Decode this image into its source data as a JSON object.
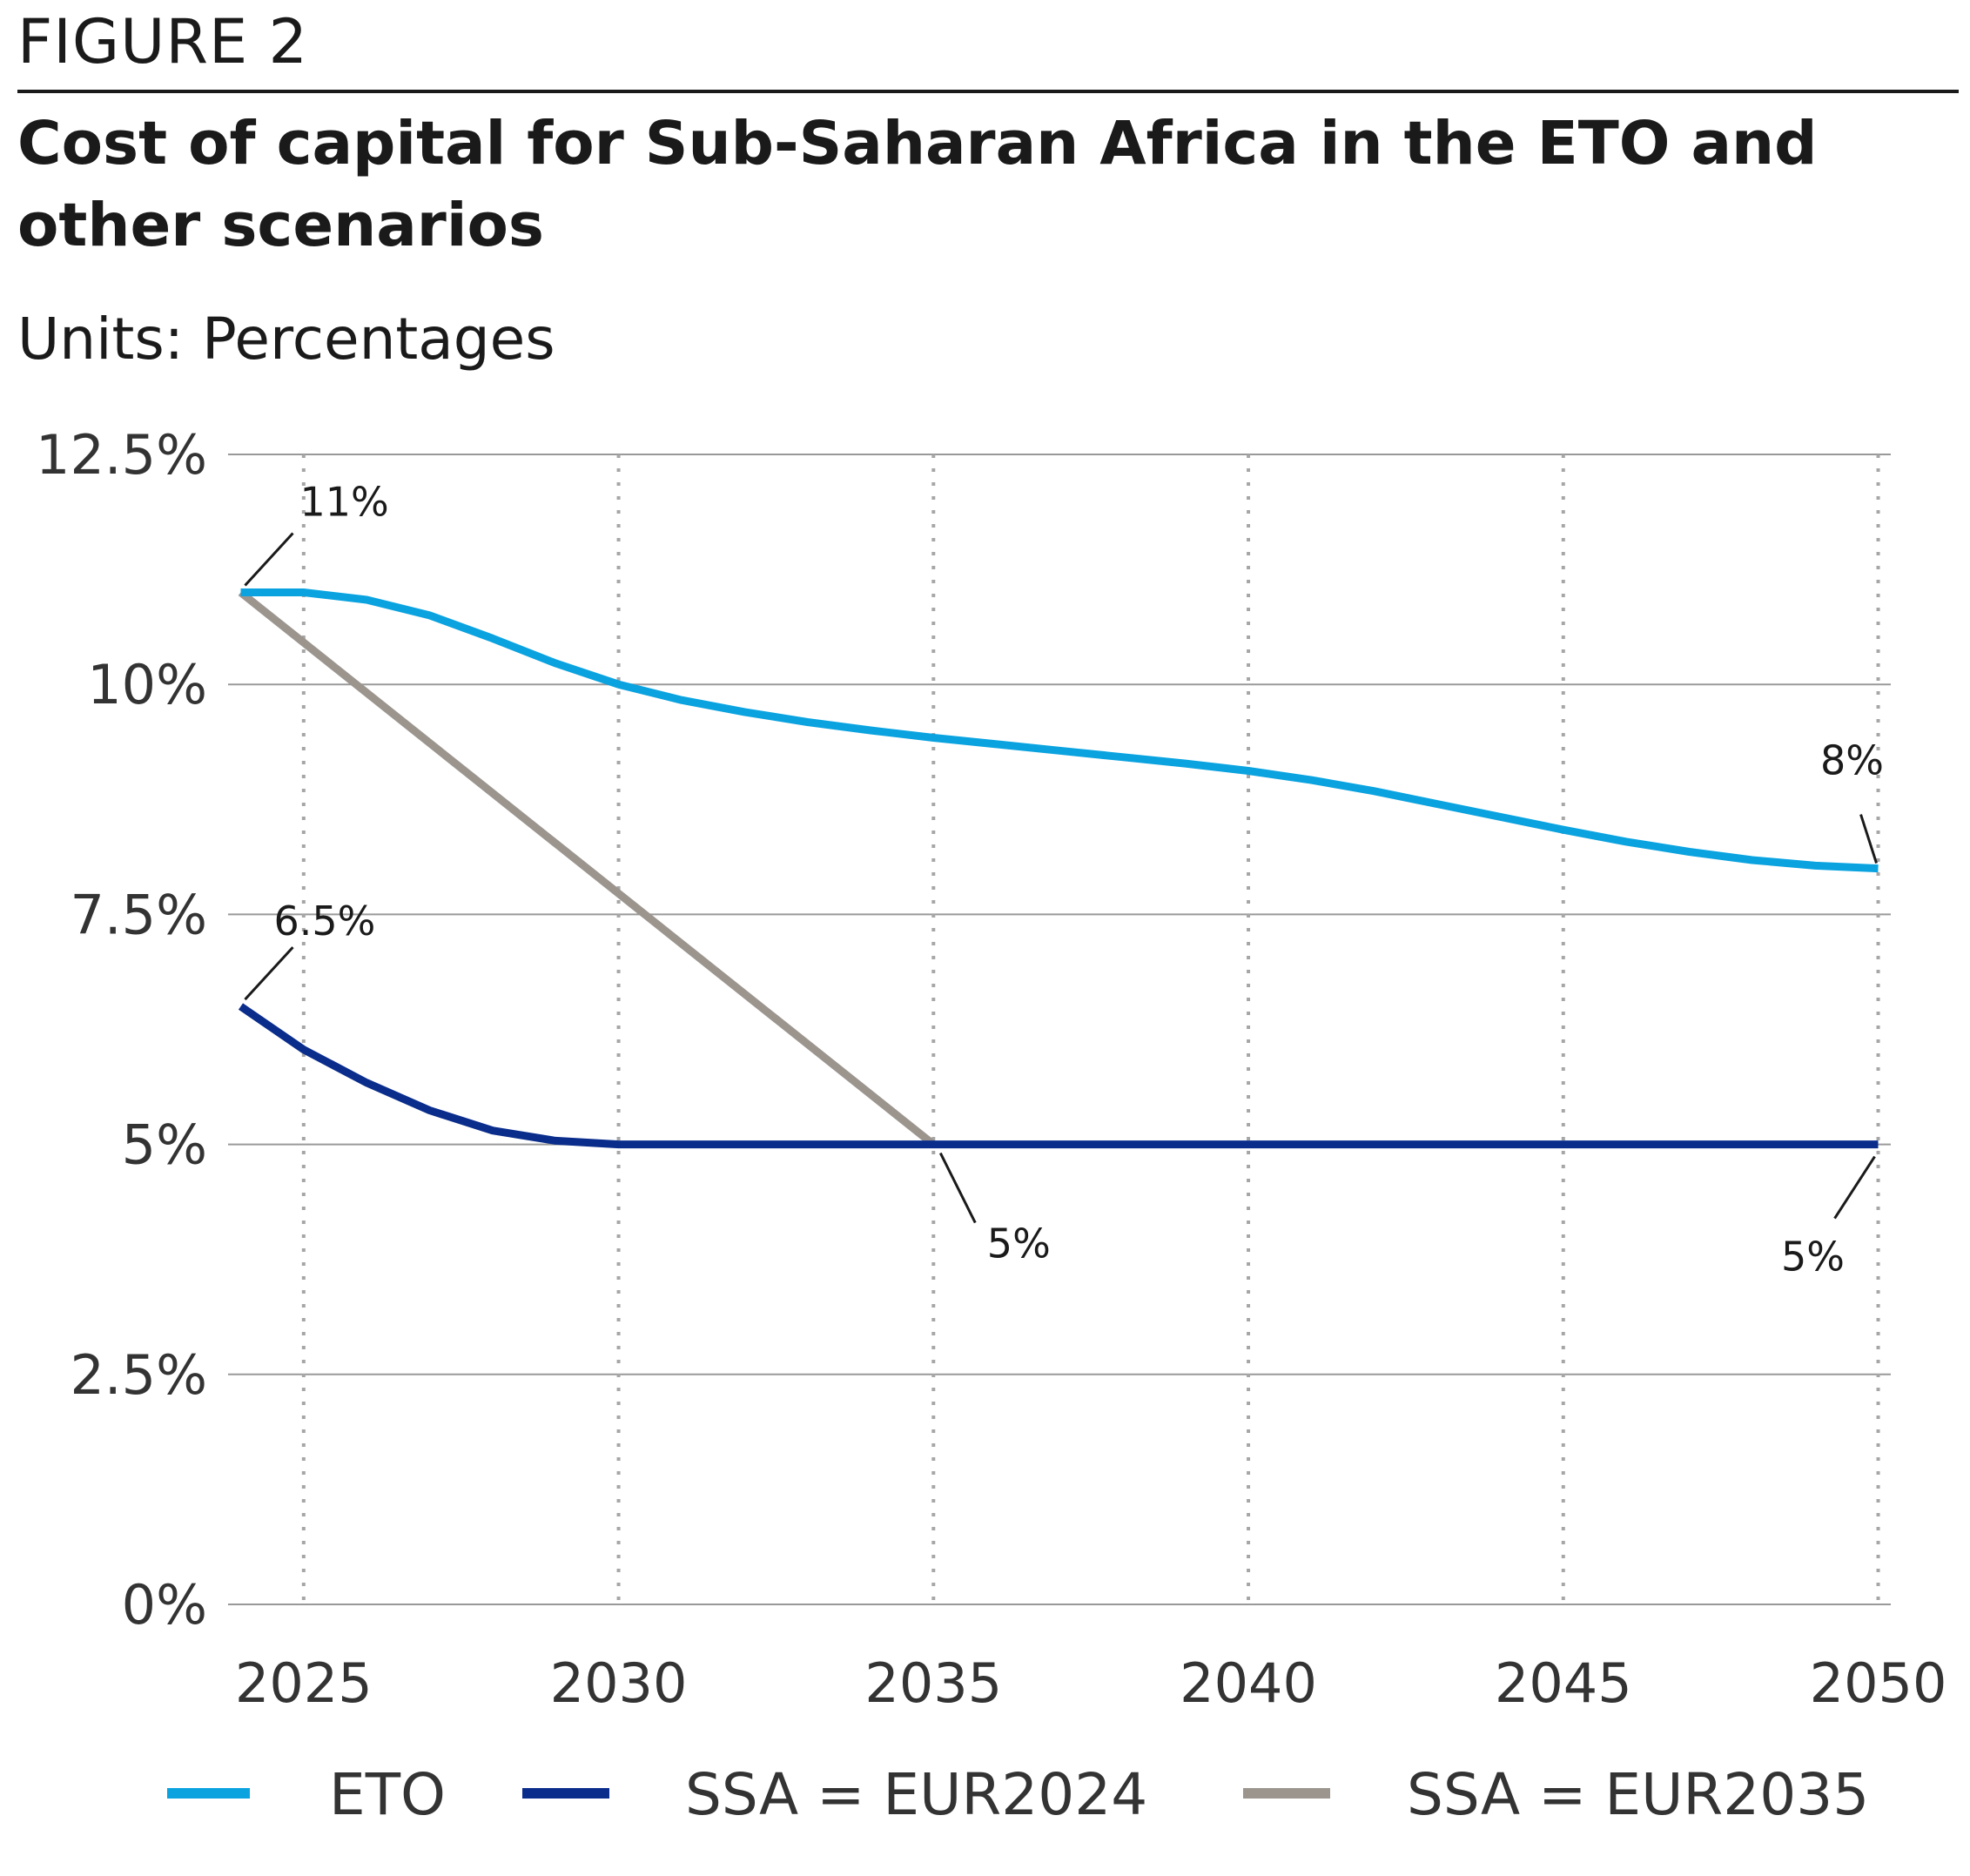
{
  "header": {
    "figure_label": "FIGURE 2",
    "title": "Cost of capital for Sub-Saharan Africa in the ETO and other scenarios",
    "units": "Units: Percentages"
  },
  "colors": {
    "eto": "#0aa3e0",
    "eur2024": "#0a2d8c",
    "eur2035": "#9b958e",
    "grid": "#999999",
    "vgrid": "#a6a6a6"
  },
  "chart_data": {
    "type": "line",
    "title": "Cost of capital for Sub-Saharan Africa in the ETO and other scenarios",
    "xlabel": "",
    "ylabel": "",
    "xlim": [
      2023.8,
      2050.2
    ],
    "ylim": [
      0,
      12.5
    ],
    "x_ticks": [
      2025,
      2030,
      2035,
      2040,
      2045,
      2050
    ],
    "x_tick_labels": [
      "2025",
      "2030",
      "2035",
      "2040",
      "2045",
      "2050"
    ],
    "y_ticks": [
      0,
      2.5,
      5,
      7.5,
      10,
      12.5
    ],
    "y_tick_labels": [
      "0%",
      "2.5%",
      "5%",
      "7.5%",
      "10%",
      "12.5%"
    ],
    "grid": {
      "horizontal": "solid",
      "vertical": "dotted"
    },
    "legend_position": "bottom",
    "series": [
      {
        "name": "ETO",
        "color_key": "eto",
        "x": [
          2024,
          2025,
          2026,
          2027,
          2028,
          2029,
          2030,
          2031,
          2032,
          2033,
          2034,
          2035,
          2036,
          2037,
          2038,
          2039,
          2040,
          2041,
          2042,
          2043,
          2044,
          2045,
          2046,
          2047,
          2048,
          2049,
          2050
        ],
        "values": [
          11.0,
          11.0,
          10.92,
          10.75,
          10.5,
          10.23,
          10.0,
          9.83,
          9.7,
          9.59,
          9.5,
          9.42,
          9.35,
          9.28,
          9.21,
          9.14,
          9.06,
          8.96,
          8.84,
          8.7,
          8.56,
          8.42,
          8.29,
          8.18,
          8.09,
          8.03,
          8.0
        ]
      },
      {
        "name": "SSA = EUR2024",
        "color_key": "eur2024",
        "x": [
          2024,
          2025,
          2026,
          2027,
          2028,
          2029,
          2030,
          2031,
          2032,
          2033,
          2034,
          2035,
          2036,
          2037,
          2038,
          2039,
          2040,
          2041,
          2042,
          2043,
          2044,
          2045,
          2046,
          2047,
          2048,
          2049,
          2050
        ],
        "values": [
          6.5,
          6.03,
          5.67,
          5.37,
          5.15,
          5.04,
          5.0,
          5.0,
          5.0,
          5.0,
          5.0,
          5.0,
          5.0,
          5.0,
          5.0,
          5.0,
          5.0,
          5.0,
          5.0,
          5.0,
          5.0,
          5.0,
          5.0,
          5.0,
          5.0,
          5.0,
          5.0
        ]
      },
      {
        "name": "SSA = EUR2035",
        "color_key": "eur2035",
        "x": [
          2024,
          2035
        ],
        "values": [
          11.0,
          5.0
        ]
      }
    ],
    "annotations": [
      {
        "text": "11%",
        "x": 2024,
        "y": 11.0
      },
      {
        "text": "6.5%",
        "x": 2024,
        "y": 6.5
      },
      {
        "text": "8%",
        "x": 2050,
        "y": 8.0
      },
      {
        "text": "5%",
        "x": 2035,
        "y": 5.0
      },
      {
        "text": "5%",
        "x": 2050,
        "y": 5.0
      }
    ]
  },
  "legend": {
    "items": [
      {
        "label": "ETO",
        "color_key": "eto"
      },
      {
        "label": "SSA = EUR2024",
        "color_key": "eur2024"
      },
      {
        "label": "SSA = EUR2035",
        "color_key": "eur2035"
      }
    ]
  }
}
